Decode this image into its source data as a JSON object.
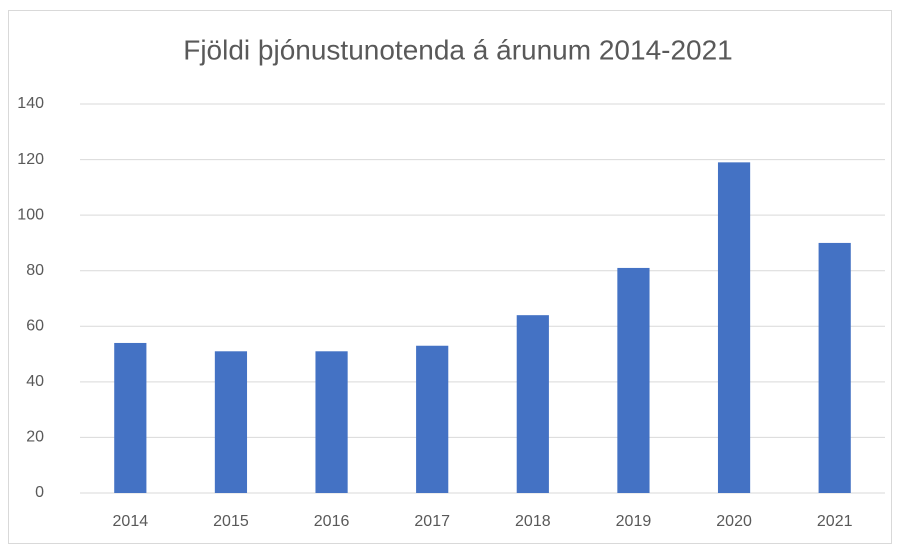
{
  "chart_data": {
    "type": "bar",
    "title": "Fjöldi þjónustunotenda á árunum 2014-2021",
    "categories": [
      "2014",
      "2015",
      "2016",
      "2017",
      "2018",
      "2019",
      "2020",
      "2021"
    ],
    "values": [
      54,
      51,
      51,
      53,
      64,
      81,
      119,
      90
    ],
    "color": "#4472c4",
    "ylim": [
      0,
      140
    ],
    "yticks": [
      0,
      20,
      40,
      60,
      80,
      100,
      120,
      140
    ],
    "grid": true
  }
}
